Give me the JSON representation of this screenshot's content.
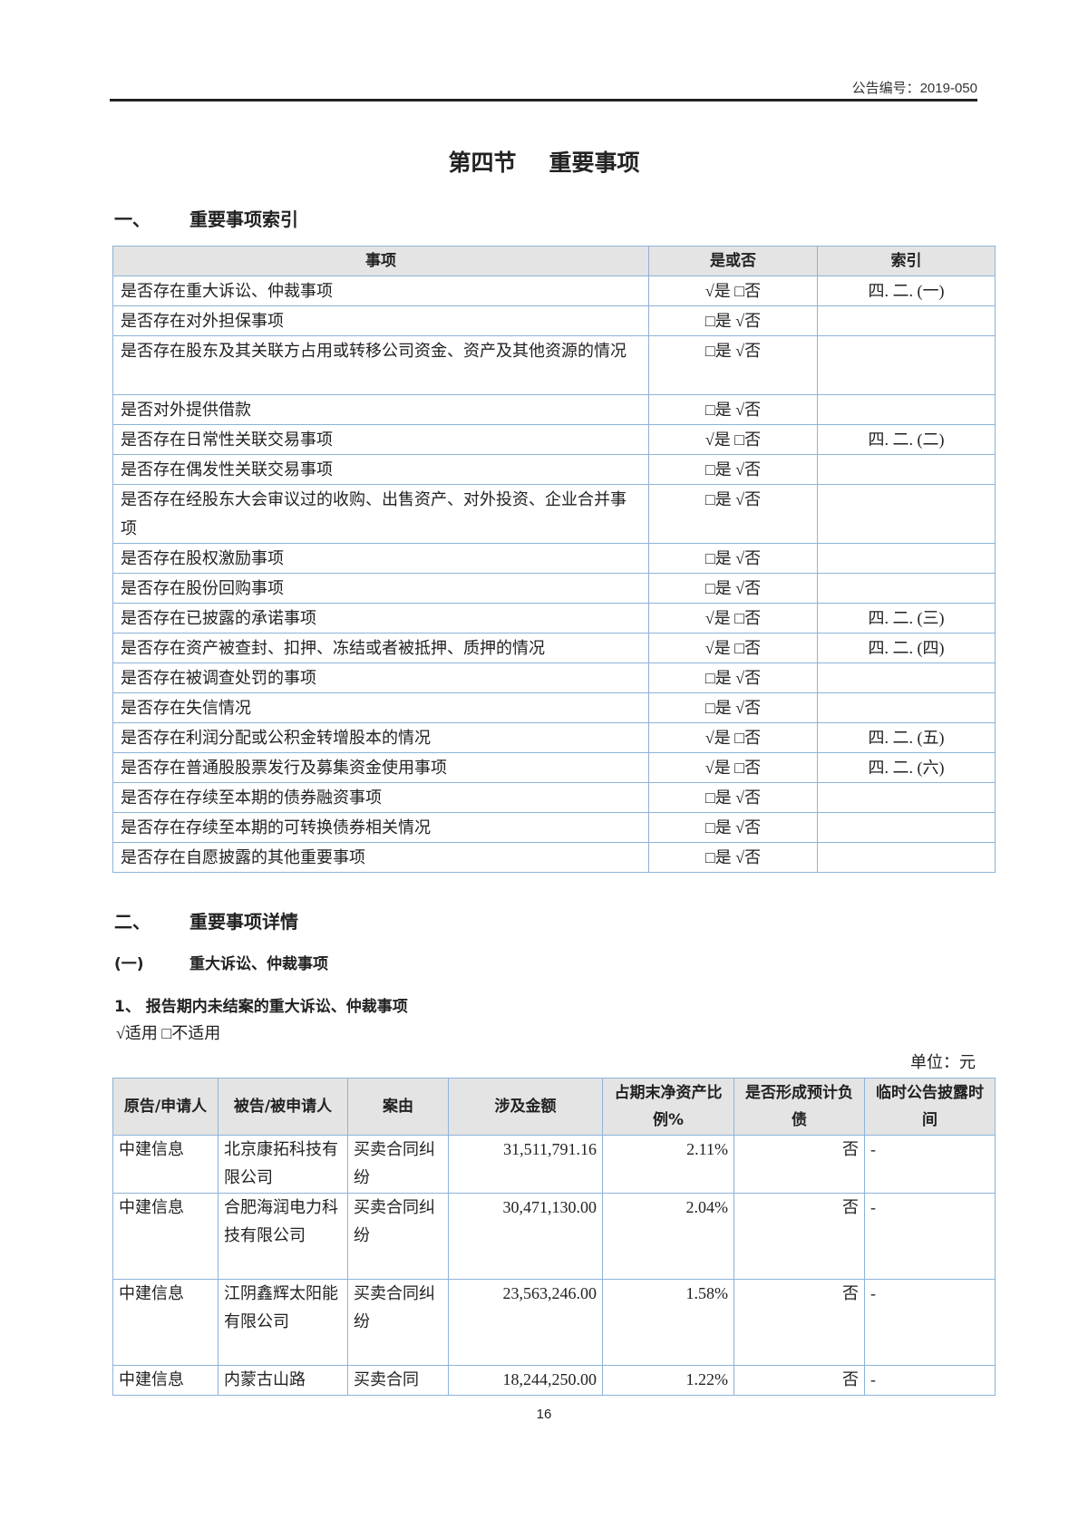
{
  "header": {
    "doc_number": "公告编号：2019-050"
  },
  "section_title": {
    "part1": "第四节",
    "part2": "重要事项"
  },
  "heading1": {
    "num": "一、",
    "text": "重要事项索引"
  },
  "index_table": {
    "headers": [
      "事项",
      "是或否",
      "索引"
    ],
    "rows": [
      {
        "item": "是否存在重大诉讼、仲裁事项",
        "yesno": "√是 □否",
        "index": "四. 二. (一)"
      },
      {
        "item": "是否存在对外担保事项",
        "yesno": "□是 √否",
        "index": ""
      },
      {
        "item": "是否存在股东及其关联方占用或转移公司资金、资产及其他资源的情况",
        "yesno": "□是 √否",
        "index": ""
      },
      {
        "item": "是否对外提供借款",
        "yesno": "□是 √否",
        "index": ""
      },
      {
        "item": "是否存在日常性关联交易事项",
        "yesno": "√是 □否",
        "index": "四. 二. (二)"
      },
      {
        "item": "是否存在偶发性关联交易事项",
        "yesno": "□是 √否",
        "index": ""
      },
      {
        "item": "是否存在经股东大会审议过的收购、出售资产、对外投资、企业合并事项",
        "yesno": "□是 √否",
        "index": ""
      },
      {
        "item": "是否存在股权激励事项",
        "yesno": "□是 √否",
        "index": ""
      },
      {
        "item": "是否存在股份回购事项",
        "yesno": "□是 √否",
        "index": ""
      },
      {
        "item": "是否存在已披露的承诺事项",
        "yesno": "√是 □否",
        "index": "四. 二. (三)"
      },
      {
        "item": "是否存在资产被查封、扣押、冻结或者被抵押、质押的情况",
        "yesno": "√是 □否",
        "index": "四. 二. (四)"
      },
      {
        "item": "是否存在被调查处罚的事项",
        "yesno": "□是 √否",
        "index": ""
      },
      {
        "item": "是否存在失信情况",
        "yesno": "□是 √否",
        "index": ""
      },
      {
        "item": "是否存在利润分配或公积金转增股本的情况",
        "yesno": "√是 □否",
        "index": "四. 二. (五)"
      },
      {
        "item": "是否存在普通股股票发行及募集资金使用事项",
        "yesno": "√是 □否",
        "index": "四. 二. (六)"
      },
      {
        "item": "是否存在存续至本期的债券融资事项",
        "yesno": "□是 √否",
        "index": ""
      },
      {
        "item": "是否存在存续至本期的可转换债券相关情况",
        "yesno": "□是 √否",
        "index": ""
      },
      {
        "item": "是否存在自愿披露的其他重要事项",
        "yesno": "□是 √否",
        "index": ""
      }
    ]
  },
  "heading2": {
    "num": "二、",
    "text": "重要事项详情"
  },
  "heading3": {
    "num": "(一)",
    "text": "重大诉讼、仲裁事项"
  },
  "heading4": {
    "text": "1、 报告期内未结案的重大诉讼、仲裁事项"
  },
  "applicability": "√适用 □不适用",
  "unit": "单位：元",
  "litigation_table": {
    "headers": [
      "原告/申请人",
      "被告/被申请人",
      "案由",
      "涉及金额",
      "占期末净资产比例%",
      "是否形成预计负债",
      "临时公告披露时间"
    ],
    "rows": [
      {
        "plaintiff": "中建信息",
        "defendant": "北京康拓科技有限公司",
        "cause": "买卖合同纠纷",
        "amount": "31,511,791.16",
        "ratio": "2.11%",
        "liability": "否",
        "date": "-"
      },
      {
        "plaintiff": "中建信息",
        "defendant": "合肥海润电力科技有限公司",
        "cause": "买卖合同纠纷",
        "amount": "30,471,130.00",
        "ratio": "2.04%",
        "liability": "否",
        "date": "-"
      },
      {
        "plaintiff": "中建信息",
        "defendant": "江阴鑫辉太阳能有限公司",
        "cause": "买卖合同纠纷",
        "amount": "23,563,246.00",
        "ratio": "1.58%",
        "liability": "否",
        "date": "-"
      },
      {
        "plaintiff": "中建信息",
        "defendant": "内蒙古山路",
        "cause": "买卖合同",
        "amount": "18,244,250.00",
        "ratio": "1.22%",
        "liability": "否",
        "date": "-"
      }
    ]
  },
  "page_number": "16",
  "colors": {
    "table_border": "#8db3d8",
    "header_bg": "#e4e4e4"
  }
}
